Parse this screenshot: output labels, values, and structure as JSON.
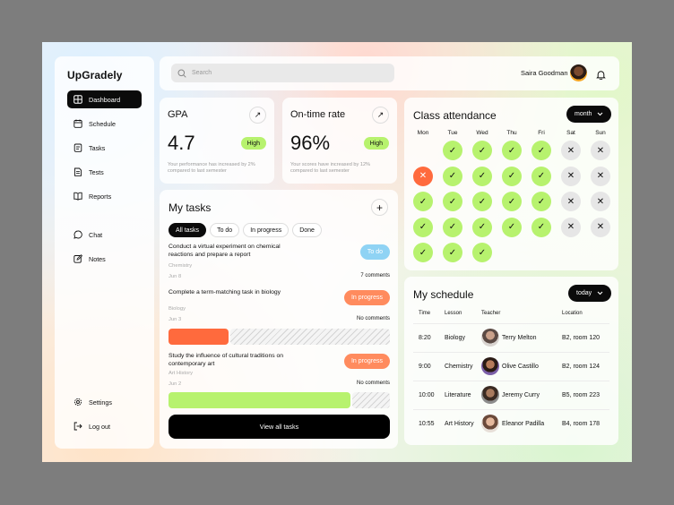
{
  "app": {
    "brand": "UpGradely"
  },
  "sidebar": {
    "items": [
      {
        "label": "Dashboard",
        "icon": "grid-icon",
        "active": true
      },
      {
        "label": "Schedule",
        "icon": "calendar-icon"
      },
      {
        "label": "Tasks",
        "icon": "tasks-icon"
      },
      {
        "label": "Tests",
        "icon": "document-icon"
      },
      {
        "label": "Reports",
        "icon": "book-icon"
      },
      {
        "label": "Chat",
        "icon": "chat-icon"
      },
      {
        "label": "Notes",
        "icon": "edit-icon"
      },
      {
        "label": "Settings",
        "icon": "gear-icon"
      },
      {
        "label": "Log out",
        "icon": "logout-icon"
      }
    ]
  },
  "header": {
    "search_placeholder": "Search",
    "user_name": "Saira Goodman"
  },
  "stats": [
    {
      "title": "GPA",
      "value": "4.7",
      "badge": "High",
      "note": "Your performance has increased by 2% compared to last semester"
    },
    {
      "title": "On-time rate",
      "value": "96%",
      "badge": "High",
      "note": "Your scores have increased by 12% compared to last semester"
    }
  ],
  "tasks": {
    "title": "My tasks",
    "tabs": [
      "All tasks",
      "To do",
      "In progress",
      "Done"
    ],
    "items": [
      {
        "name": "Conduct a virtual experiment on chemical reactions and prepare a report",
        "subject": "Chemistry",
        "date": "Jun 8",
        "comments": "7 comments",
        "status": "To do",
        "progress": null
      },
      {
        "name": "Complete a term-matching task in biology",
        "subject": "Biology",
        "date": "Jun 3",
        "comments": "No comments",
        "status": "In progress",
        "progress": 0.27
      },
      {
        "name": "Study the influence of cultural traditions on contemporary art",
        "subject": "Art History",
        "date": "Jun 2",
        "comments": "No comments",
        "status": "In progress",
        "progress": 0.82
      }
    ],
    "view_all": "View all tasks"
  },
  "attendance": {
    "title": "Class attendance",
    "filter": "month",
    "days": [
      "Mon",
      "Tue",
      "Wed",
      "Thu",
      "Fri",
      "Sat",
      "Sun"
    ],
    "weeks": [
      [
        "",
        "present",
        "present",
        "present",
        "present",
        "weekend",
        "weekend"
      ],
      [
        "absent",
        "present",
        "present",
        "present",
        "present",
        "weekend",
        "weekend"
      ],
      [
        "present",
        "present",
        "present",
        "present",
        "present",
        "weekend",
        "weekend"
      ],
      [
        "present",
        "present",
        "present",
        "present",
        "present",
        "weekend",
        "weekend"
      ],
      [
        "present",
        "present",
        "present",
        "",
        "",
        "",
        ""
      ]
    ],
    "colors": {
      "present": "#b7f26e",
      "absent": "#ff6a3d",
      "weekend": "#e6e6e6"
    }
  },
  "schedule": {
    "title": "My schedule",
    "filter": "today",
    "headers": [
      "Time",
      "Lesson",
      "Teacher",
      "Location"
    ],
    "rows": [
      {
        "time": "8:20",
        "lesson": "Biology",
        "teacher": "Terry Melton",
        "location": "B2, room 120"
      },
      {
        "time": "9:00",
        "lesson": "Chemistry",
        "teacher": "Olive Castillo",
        "location": "B2, room 124"
      },
      {
        "time": "10:00",
        "lesson": "Literature",
        "teacher": "Jeremy Curry",
        "location": "B5, room 223"
      },
      {
        "time": "10:55",
        "lesson": "Art History",
        "teacher": "Eleanor Padilla",
        "location": "B4, room 178"
      }
    ]
  }
}
